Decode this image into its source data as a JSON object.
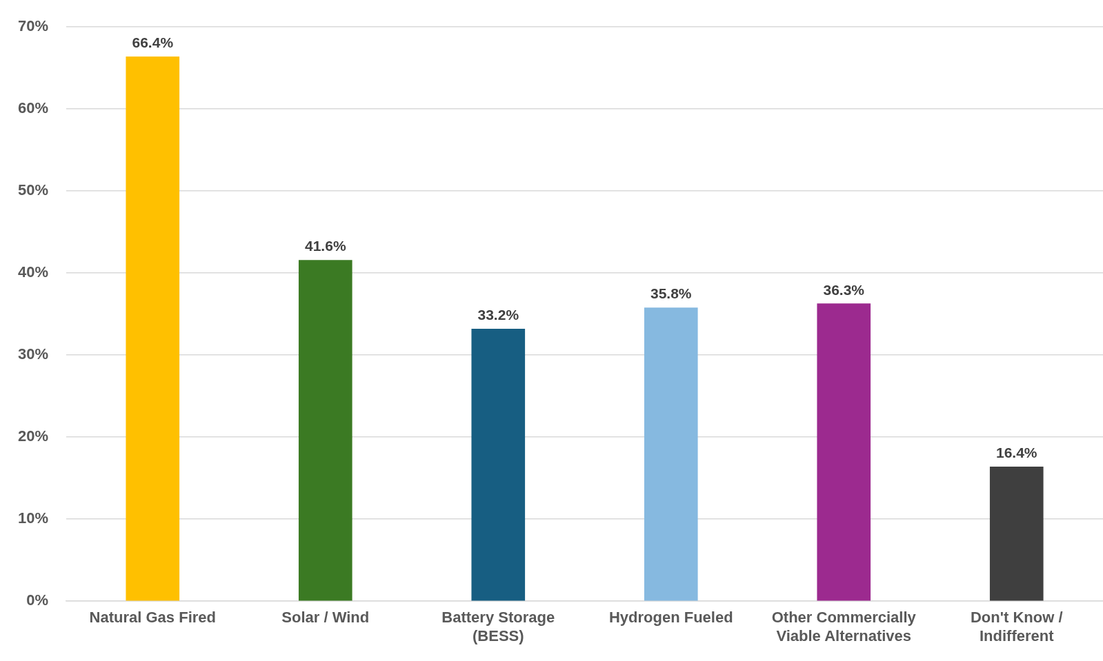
{
  "chart_data": {
    "type": "bar",
    "categories": [
      "Natural Gas Fired",
      "Solar / Wind",
      "Battery Storage (BESS)",
      "Hydrogen Fueled",
      "Other Commercially Viable Alternatives",
      "Don't Know / Indifferent"
    ],
    "values": [
      66.4,
      41.6,
      33.2,
      35.8,
      36.3,
      16.4
    ],
    "colors": [
      "#ffc000",
      "#3b7a23",
      "#175e82",
      "#86b9e0",
      "#9c2a8f",
      "#3f3f3f"
    ],
    "value_labels": [
      "66.4%",
      "41.6%",
      "33.2%",
      "35.8%",
      "36.3%",
      "16.4%"
    ],
    "ylim": [
      0,
      70
    ],
    "yticks": [
      {
        "value": 0,
        "label": "0%"
      },
      {
        "value": 10,
        "label": "10%"
      },
      {
        "value": 20,
        "label": "20%"
      },
      {
        "value": 30,
        "label": "30%"
      },
      {
        "value": 40,
        "label": "40%"
      },
      {
        "value": 50,
        "label": "50%"
      },
      {
        "value": 60,
        "label": "60%"
      },
      {
        "value": 70,
        "label": "70%"
      }
    ],
    "grid": "y",
    "legend": false
  }
}
